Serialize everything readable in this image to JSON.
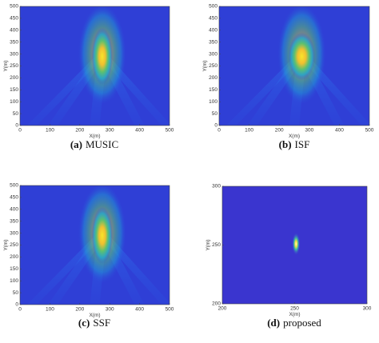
{
  "chart_data": [
    {
      "type": "heatmap",
      "caption_label": "(a)",
      "caption": "MUSIC",
      "xlabel": "X(m)",
      "ylabel": "Y(m)",
      "xlim": [
        0,
        500
      ],
      "ylim": [
        0,
        500
      ],
      "xticks": [
        0,
        100,
        200,
        300,
        400,
        500
      ],
      "yticks": [
        0,
        50,
        100,
        150,
        200,
        250,
        300,
        350,
        400,
        450,
        500
      ]
    },
    {
      "type": "heatmap",
      "caption_label": "(b)",
      "caption": "ISF",
      "xlabel": "X(m)",
      "ylabel": "Y(m)",
      "xlim": [
        0,
        500
      ],
      "ylim": [
        0,
        500
      ],
      "xticks": [
        0,
        100,
        200,
        300,
        400,
        500
      ],
      "yticks": [
        0,
        50,
        100,
        150,
        200,
        250,
        300,
        350,
        400,
        450,
        500
      ]
    },
    {
      "type": "heatmap",
      "caption_label": "(c)",
      "caption": "SSF",
      "xlabel": "X(m)",
      "ylabel": "Y(m)",
      "xlim": [
        0,
        500
      ],
      "ylim": [
        0,
        500
      ],
      "xticks": [
        0,
        100,
        200,
        300,
        400,
        500
      ],
      "yticks": [
        0,
        50,
        100,
        150,
        200,
        250,
        300,
        350,
        400,
        450,
        500
      ]
    },
    {
      "type": "heatmap",
      "caption_label": "(d)",
      "caption": "proposed",
      "xlabel": "X(m)",
      "ylabel": "Y(m)",
      "xlim": [
        200,
        300
      ],
      "ylim": [
        200,
        300
      ],
      "xticks": [
        200,
        250,
        300
      ],
      "yticks": [
        200,
        250,
        300
      ]
    }
  ]
}
